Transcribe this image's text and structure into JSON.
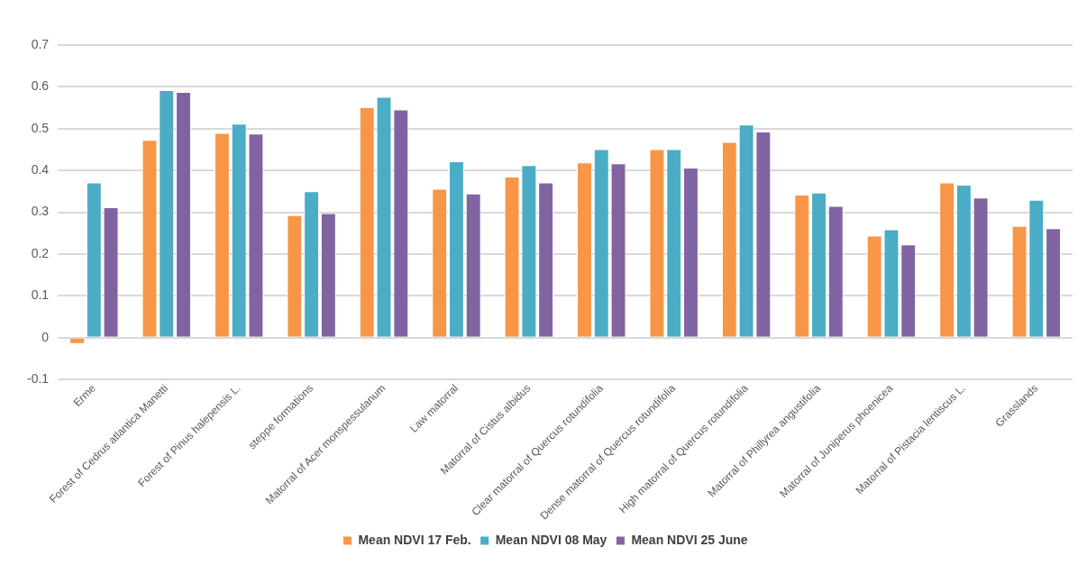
{
  "chart_data": {
    "type": "bar",
    "categories": [
      "Erme",
      "Forest of Cedrus atlantica Manetti",
      "Forest of Pinus halepensis L.",
      "steppe formations",
      "Matorral of Acer monspessulanum",
      "Law matorral",
      "Matorral of Cistus albidus",
      "Clear matorral of Quercus rotundifolia",
      "Dense matorral of Quercus rotundifolia",
      "High matorral of Quercus rotundifolia",
      "Matorral of Phillyrea angustifolia",
      "Matorral of Juniperus phoenicea",
      "Matorral of Pistacia lentiscus L.",
      "Grasslands"
    ],
    "series": [
      {
        "name": "Mean NDVI 17 Feb.",
        "color": "#f79646",
        "values": [
          -0.015,
          0.473,
          0.49,
          0.293,
          0.551,
          0.356,
          0.385,
          0.419,
          0.451,
          0.468,
          0.342,
          0.244,
          0.371,
          0.267
        ]
      },
      {
        "name": "Mean NDVI 08 May",
        "color": "#4bacc6",
        "values": [
          0.371,
          0.592,
          0.512,
          0.35,
          0.576,
          0.422,
          0.413,
          0.451,
          0.451,
          0.51,
          0.347,
          0.259,
          0.366,
          0.33
        ]
      },
      {
        "name": "Mean NDVI 25 June",
        "color": "#8064a2",
        "values": [
          0.312,
          0.588,
          0.488,
          0.298,
          0.546,
          0.345,
          0.371,
          0.417,
          0.407,
          0.493,
          0.315,
          0.223,
          0.335,
          0.262
        ]
      }
    ],
    "ylim": [
      -0.1,
      0.7
    ],
    "yticks": [
      -0.1,
      0,
      0.1,
      0.2,
      0.3,
      0.4,
      0.5,
      0.6,
      0.7
    ],
    "grid": "y",
    "legend": "bottom"
  }
}
